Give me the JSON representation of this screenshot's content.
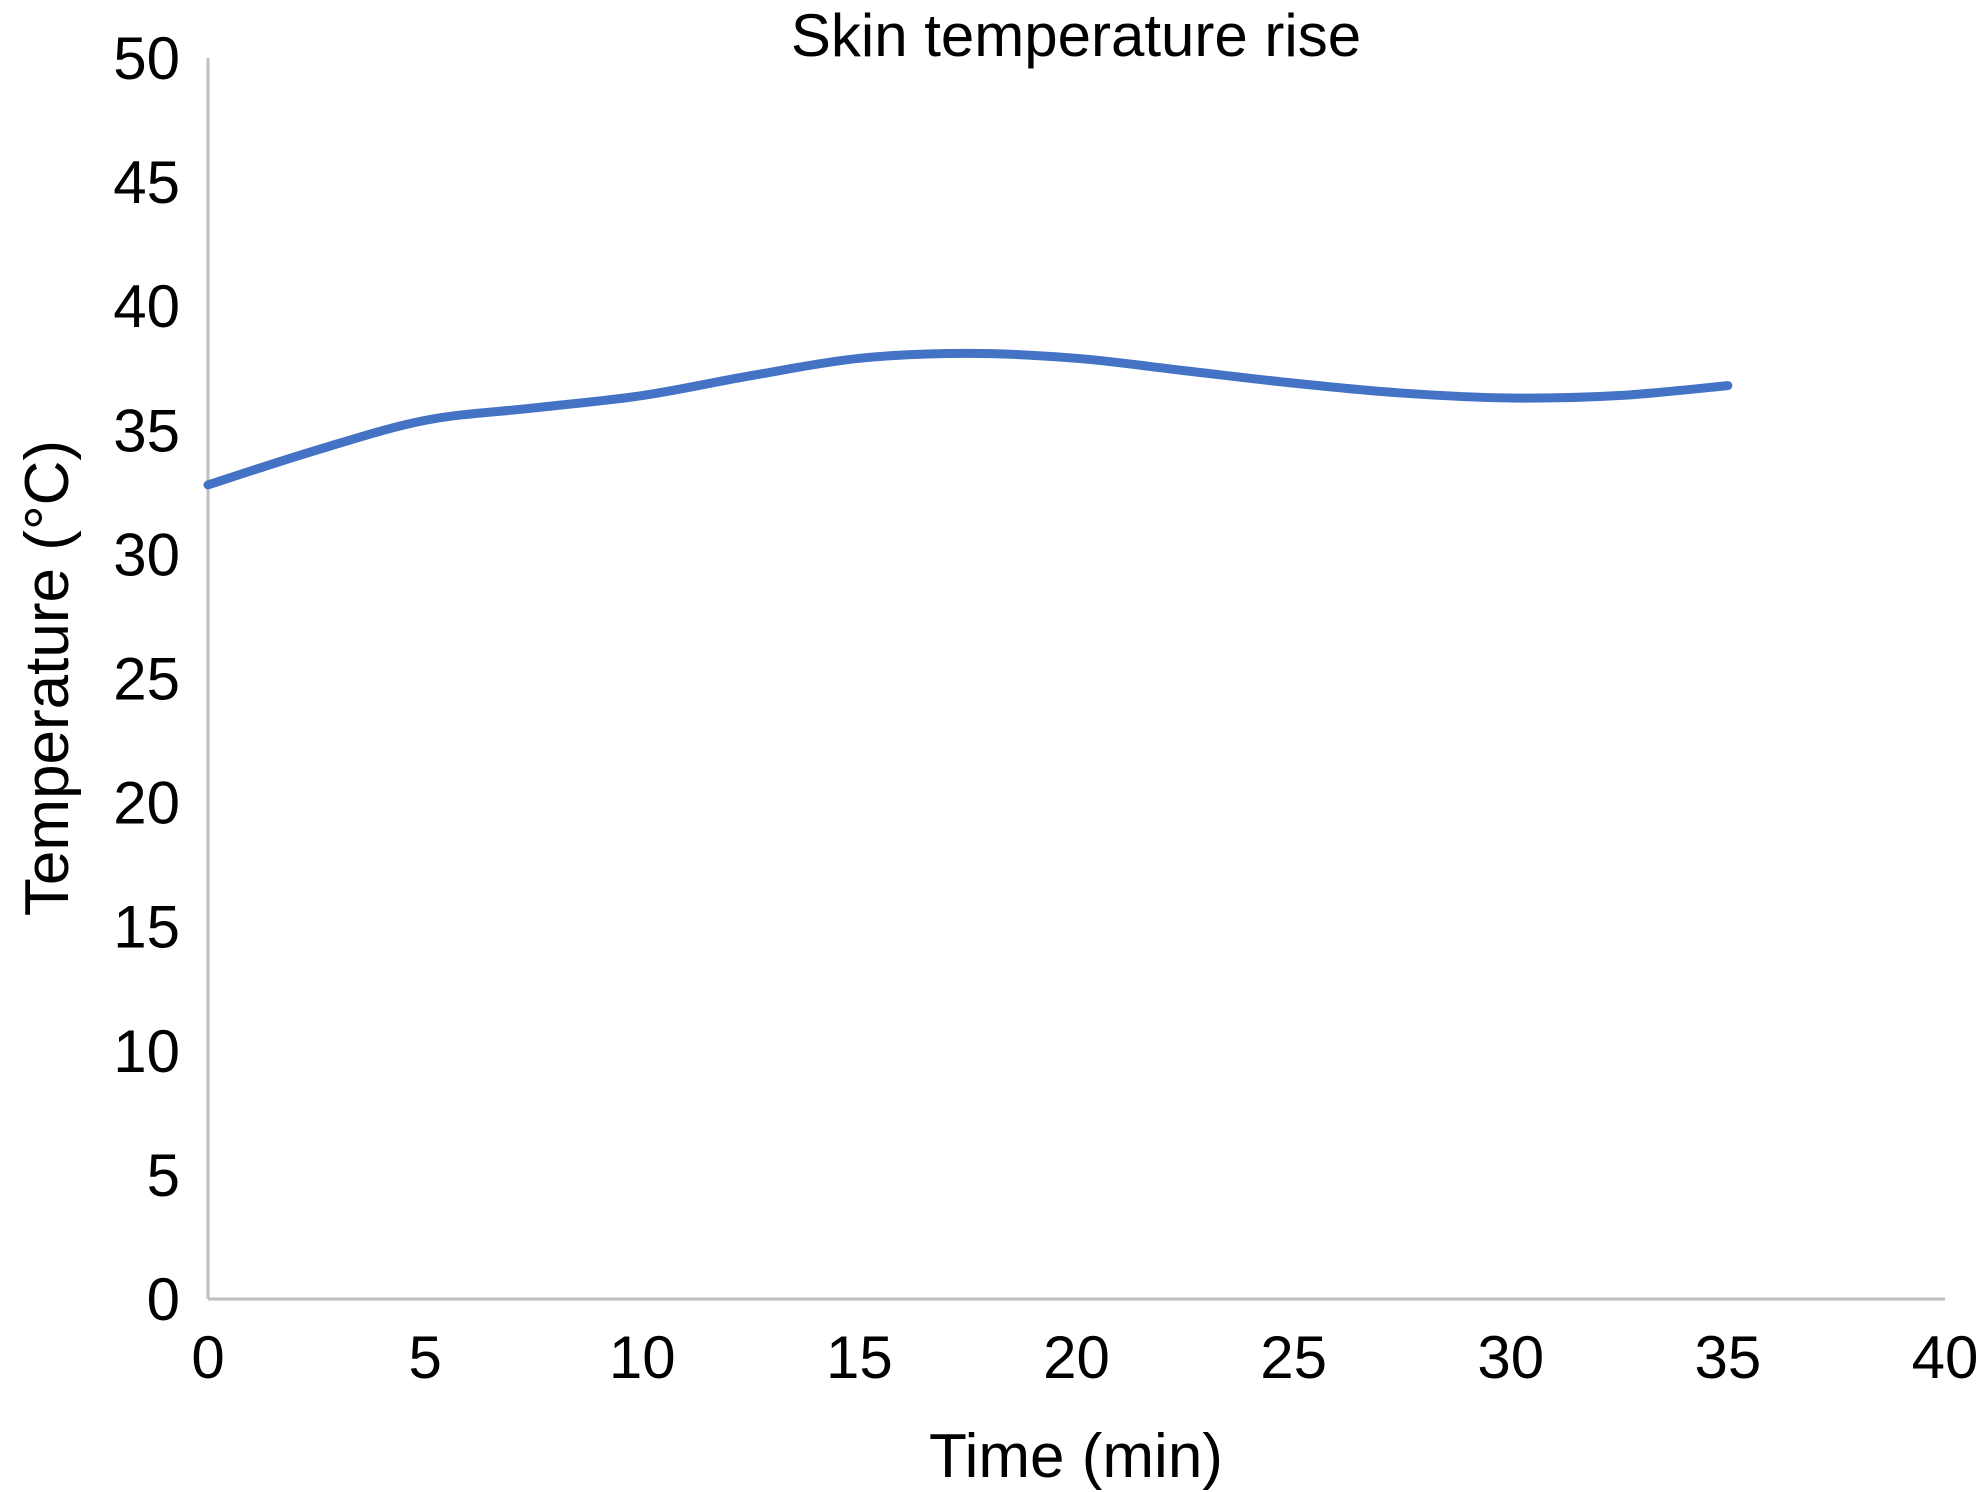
{
  "chart_data": {
    "type": "line",
    "title": "Skin temperature rise",
    "xlabel": "Time (min)",
    "ylabel": "Temperature (°C)",
    "xlim": [
      0,
      40
    ],
    "ylim": [
      0,
      50
    ],
    "x_ticks": [
      "0",
      "5",
      "10",
      "15",
      "20",
      "25",
      "30",
      "35",
      "40"
    ],
    "y_ticks": [
      "0",
      "5",
      "10",
      "15",
      "20",
      "25",
      "30",
      "35",
      "40",
      "45",
      "50"
    ],
    "grid": false,
    "legend": "none",
    "smooth": true,
    "series": [
      {
        "color": "#4472C4",
        "x": [
          0,
          2.5,
          5,
          7.5,
          10,
          12.5,
          15,
          17.5,
          20,
          22.5,
          25,
          27.5,
          30,
          32.5,
          35
        ],
        "y": [
          32.8,
          34.2,
          35.4,
          35.9,
          36.4,
          37.2,
          37.9,
          38.1,
          37.9,
          37.4,
          36.9,
          36.5,
          36.3,
          36.4,
          36.8
        ]
      }
    ]
  }
}
